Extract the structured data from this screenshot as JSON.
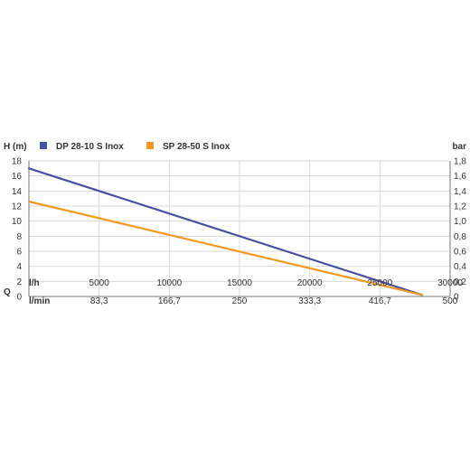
{
  "chart_data": {
    "type": "line",
    "ylabel_left": "H (m)",
    "ylabel_right": "bar",
    "xlabel": "Q",
    "x_unit_primary": "l/h",
    "x_unit_secondary": "l/min",
    "xlim": [
      0,
      30000
    ],
    "ylim": [
      0,
      18
    ],
    "x_ticks": [
      "0",
      "5000",
      "10000",
      "15000",
      "20000",
      "25000",
      "30000"
    ],
    "x_ticks_values": [
      0,
      5000,
      10000,
      15000,
      20000,
      25000,
      30000
    ],
    "x_ticks_secondary": [
      "",
      "83,3",
      "166,7",
      "250",
      "333,3",
      "416,7",
      "500"
    ],
    "y_ticks_left": [
      "0",
      "2",
      "4",
      "6",
      "8",
      "10",
      "12",
      "14",
      "16",
      "18"
    ],
    "y_ticks_left_values": [
      0,
      2,
      4,
      6,
      8,
      10,
      12,
      14,
      16,
      18
    ],
    "y_ticks_right": [
      "0",
      "0,2",
      "0,4",
      "0,6",
      "0,8",
      "1,0",
      "1,2",
      "1,4",
      "1,6",
      "1,8"
    ],
    "grid": true,
    "legend_position": "top-left",
    "series": [
      {
        "name": "DP 28-10 S Inox",
        "color": "#4a4fa3",
        "x": [
          0,
          28000
        ],
        "y": [
          17,
          0.2
        ]
      },
      {
        "name": "SP 28-50 S Inox",
        "color": "#f39a1e",
        "x": [
          0,
          28000
        ],
        "y": [
          12.6,
          0.2
        ]
      }
    ]
  }
}
